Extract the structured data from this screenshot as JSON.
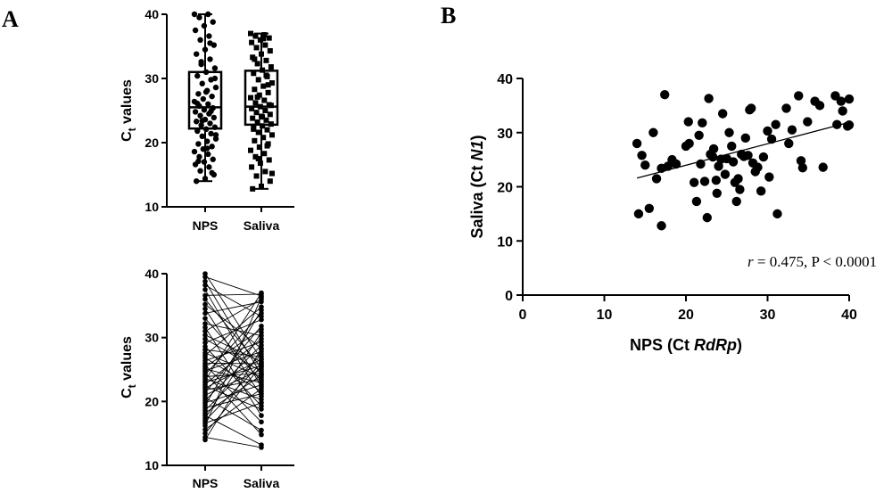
{
  "panels": {
    "a_label": "A",
    "b_label": "B"
  },
  "colors": {
    "ink": "#000000",
    "box_fill": "#ffffff"
  },
  "chart_data": [
    {
      "id": "A-top",
      "type": "box",
      "ylabel_main": "C",
      "ylabel_sub": "t",
      "ylabel_rest": " values",
      "categories": [
        "NPS",
        "Saliva"
      ],
      "ylim": [
        10,
        40
      ],
      "yticks": [
        "10",
        "20",
        "30",
        "40"
      ],
      "boxes": [
        {
          "name": "NPS",
          "min": 14,
          "q1": 22.2,
          "median": 25.5,
          "q3": 31.0,
          "max": 40,
          "marker": "circle"
        },
        {
          "name": "Saliva",
          "min": 12.8,
          "q1": 22.8,
          "median": 25.6,
          "q3": 31.2,
          "max": 37,
          "marker": "square"
        }
      ],
      "points": {
        "NPS": [
          40,
          40,
          39.5,
          38.8,
          38.2,
          37.5,
          36.6,
          36,
          35.2,
          34.5,
          33.8,
          33,
          32.2,
          31.6,
          31,
          30.4,
          29.8,
          29.2,
          28.6,
          28.1,
          27.6,
          27.2,
          26.8,
          26.4,
          26,
          25.7,
          25.4,
          25.1,
          24.8,
          24.5,
          24.2,
          23.9,
          23.6,
          23.3,
          23,
          22.7,
          22.4,
          22.1,
          21.8,
          21.4,
          21,
          20.6,
          20.2,
          19.8,
          19.4,
          19,
          18.6,
          18.2,
          17.8,
          17.4,
          17,
          16.6,
          16.2,
          15.6,
          15,
          14.4,
          14,
          35.5,
          32.6,
          30,
          27.9,
          26.1,
          24.9,
          23.4,
          21.2,
          19.1,
          17.1,
          15.3
        ],
        "Saliva": [
          37,
          36.8,
          36.6,
          36.3,
          36,
          35.6,
          35.2,
          34.8,
          34.3,
          33.8,
          33.3,
          32.8,
          32.3,
          31.8,
          31.3,
          30.8,
          30.3,
          29.8,
          29.3,
          28.8,
          28.3,
          27.8,
          27.4,
          27,
          26.6,
          26.2,
          25.9,
          25.6,
          25.3,
          25,
          24.7,
          24.4,
          24.1,
          23.8,
          23.5,
          23.2,
          22.9,
          22.6,
          22.3,
          22,
          21.6,
          21.2,
          20.8,
          20.3,
          19.8,
          19.3,
          18.8,
          18.3,
          17.8,
          17.3,
          16.8,
          16.2,
          15.5,
          14.8,
          14,
          13.2,
          12.8,
          30.5,
          27.1,
          25.8,
          24,
          22.1,
          19.5,
          17.5,
          15.2,
          36.2,
          33,
          29
        ]
      }
    },
    {
      "id": "A-bottom",
      "type": "paired-line",
      "ylabel_main": "C",
      "ylabel_sub": "t",
      "ylabel_rest": " values",
      "categories": [
        "NPS",
        "Saliva"
      ],
      "ylim": [
        10,
        40
      ],
      "yticks": [
        "10",
        "20",
        "30",
        "40"
      ],
      "pairs": [
        [
          40,
          26.6
        ],
        [
          39.5,
          36.5
        ],
        [
          38.8,
          24.2
        ],
        [
          38.2,
          33.3
        ],
        [
          37.5,
          22.3
        ],
        [
          36.6,
          36.8
        ],
        [
          36,
          25.3
        ],
        [
          35.2,
          28.3
        ],
        [
          34.5,
          20.8
        ],
        [
          33.8,
          35.6
        ],
        [
          33,
          23.2
        ],
        [
          32.2,
          30.3
        ],
        [
          31.6,
          17.8
        ],
        [
          31,
          36
        ],
        [
          30.4,
          26.2
        ],
        [
          29.8,
          24.7
        ],
        [
          29.2,
          32.8
        ],
        [
          28.6,
          19.3
        ],
        [
          28.1,
          27
        ],
        [
          27.6,
          23.8
        ],
        [
          27.2,
          34.8
        ],
        [
          26.8,
          21.6
        ],
        [
          26.4,
          29.3
        ],
        [
          26,
          25.9
        ],
        [
          25.7,
          16.8
        ],
        [
          25.4,
          31.3
        ],
        [
          25.1,
          22.9
        ],
        [
          24.8,
          27.8
        ],
        [
          24.5,
          14.8
        ],
        [
          24.2,
          33.8
        ],
        [
          23.9,
          24.4
        ],
        [
          23.6,
          20.3
        ],
        [
          23.3,
          37
        ],
        [
          23,
          25.6
        ],
        [
          22.7,
          29.8
        ],
        [
          22.4,
          18.8
        ],
        [
          22.1,
          26.6
        ],
        [
          21.8,
          23.5
        ],
        [
          21.4,
          31.8
        ],
        [
          21,
          25
        ],
        [
          20.6,
          15.5
        ],
        [
          20.2,
          28.8
        ],
        [
          19.8,
          22.6
        ],
        [
          19.4,
          34.3
        ],
        [
          19,
          21.2
        ],
        [
          18.6,
          27.4
        ],
        [
          18.2,
          24.1
        ],
        [
          17.8,
          13.2
        ],
        [
          17.4,
          30.8
        ],
        [
          17,
          26
        ],
        [
          16.6,
          19.8
        ],
        [
          16.2,
          36.3
        ],
        [
          15.6,
          22
        ],
        [
          15,
          25.6
        ],
        [
          14.4,
          12.8
        ],
        [
          14,
          28.2
        ]
      ]
    },
    {
      "id": "B",
      "type": "scatter",
      "xlabel_main": "NPS (Ct ",
      "xlabel_italic": "RdRp",
      "xlabel_close": ")",
      "ylabel_main": "Saliva (Ct ",
      "ylabel_italic": "N1",
      "ylabel_close": ")",
      "xlim": [
        0,
        40
      ],
      "ylim": [
        0,
        40
      ],
      "xticks": [
        "0",
        "10",
        "20",
        "30",
        "40"
      ],
      "yticks": [
        "0",
        "10",
        "20",
        "30",
        "40"
      ],
      "annotation_r": "r",
      "annotation_rest": " = 0.475, P < 0.0001",
      "fit": {
        "x": [
          14,
          40
        ],
        "y": [
          21.6,
          31.9
        ]
      },
      "points": [
        [
          14,
          28
        ],
        [
          14.2,
          15
        ],
        [
          14.6,
          25.8
        ],
        [
          15,
          24
        ],
        [
          15.5,
          16
        ],
        [
          16,
          30
        ],
        [
          16.4,
          21.5
        ],
        [
          17,
          23.4
        ],
        [
          17,
          12.8
        ],
        [
          17.4,
          37
        ],
        [
          17.8,
          23.8
        ],
        [
          18.3,
          25
        ],
        [
          18.8,
          24.2
        ],
        [
          20,
          27.5
        ],
        [
          20.3,
          32
        ],
        [
          20.4,
          28
        ],
        [
          21,
          20.8
        ],
        [
          21.3,
          17.3
        ],
        [
          21.6,
          29.5
        ],
        [
          21.8,
          24.2
        ],
        [
          22,
          31.8
        ],
        [
          22.3,
          21
        ],
        [
          22.6,
          14.3
        ],
        [
          22.8,
          36.3
        ],
        [
          23,
          26
        ],
        [
          23.3,
          25.5
        ],
        [
          23.4,
          27
        ],
        [
          23.7,
          21.2
        ],
        [
          23.8,
          18.8
        ],
        [
          24,
          23.8
        ],
        [
          24.3,
          25.1
        ],
        [
          24.5,
          33.5
        ],
        [
          24.8,
          22.3
        ],
        [
          25,
          25.2
        ],
        [
          25.3,
          30
        ],
        [
          25.6,
          27.5
        ],
        [
          25.8,
          24.6
        ],
        [
          26,
          20.8
        ],
        [
          26.2,
          17.3
        ],
        [
          26.4,
          21.5
        ],
        [
          26.6,
          19.5
        ],
        [
          26.8,
          26
        ],
        [
          27.1,
          25.6
        ],
        [
          27.3,
          29
        ],
        [
          27.6,
          25.8
        ],
        [
          27.8,
          34.2
        ],
        [
          28,
          34.5
        ],
        [
          28.2,
          24.4
        ],
        [
          28.5,
          22.8
        ],
        [
          28.8,
          23.6
        ],
        [
          29.2,
          19.2
        ],
        [
          29.5,
          25.5
        ],
        [
          30,
          30.3
        ],
        [
          30.2,
          21.8
        ],
        [
          30.5,
          28.8
        ],
        [
          31,
          31.5
        ],
        [
          31.2,
          15
        ],
        [
          32.3,
          34.5
        ],
        [
          32.6,
          28
        ],
        [
          33,
          30.5
        ],
        [
          33.8,
          36.8
        ],
        [
          34.1,
          24.8
        ],
        [
          34.3,
          23.5
        ],
        [
          34.9,
          32
        ],
        [
          35.8,
          35.8
        ],
        [
          36.4,
          35
        ],
        [
          36.8,
          23.6
        ],
        [
          38.3,
          36.8
        ],
        [
          38.5,
          31.5
        ],
        [
          39,
          35.8
        ],
        [
          39.2,
          34
        ],
        [
          39.8,
          31.2
        ],
        [
          40,
          31.4
        ],
        [
          40,
          36.2
        ]
      ]
    }
  ]
}
